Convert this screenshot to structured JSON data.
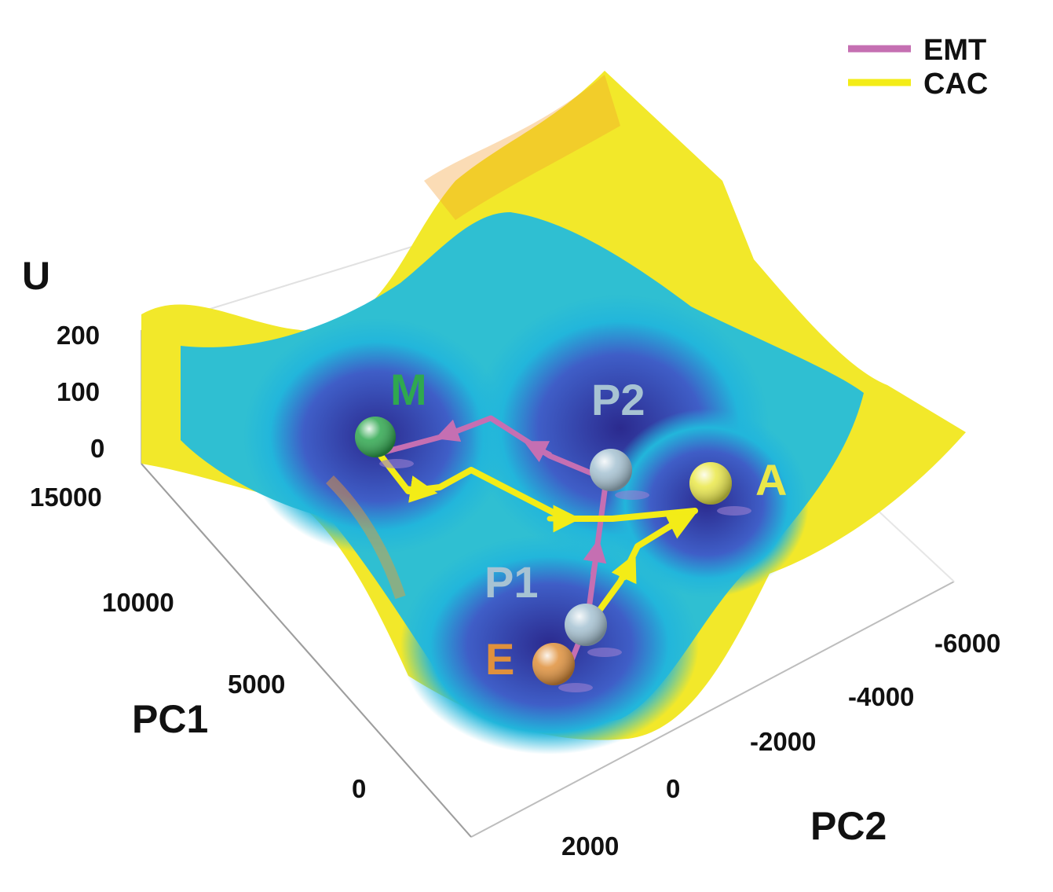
{
  "chart_data": {
    "type": "surface",
    "title": "",
    "axes": {
      "z": {
        "label": "U",
        "ticks": [
          "200",
          "100",
          "0"
        ]
      },
      "x": {
        "label": "PC1",
        "ticks": [
          "15000",
          "10000",
          "5000",
          "0"
        ]
      },
      "y": {
        "label": "PC2",
        "ticks": [
          "2000",
          "0",
          "-2000",
          "-4000",
          "-6000"
        ]
      }
    },
    "states": [
      {
        "name": "M",
        "pc1": 13000,
        "pc2": -500,
        "color": "#2fa84f"
      },
      {
        "name": "P2",
        "pc1": 9000,
        "pc2": -4000,
        "color": "#a7c3d3"
      },
      {
        "name": "A",
        "pc1": 7000,
        "pc2": -6000,
        "color": "#eae84a"
      },
      {
        "name": "P1",
        "pc1": 2500,
        "pc2": -2000,
        "color": "#a7c3d3"
      },
      {
        "name": "E",
        "pc1": 0,
        "pc2": -1000,
        "color": "#e0913c"
      }
    ],
    "legend": {
      "position": "top-right",
      "entries": [
        {
          "name": "EMT",
          "color": "#c56fb2"
        },
        {
          "name": "CAC",
          "color": "#f3ec17"
        }
      ]
    },
    "paths": [
      {
        "name": "EMT",
        "sequence": [
          "E",
          "P1",
          "P2",
          "M"
        ]
      },
      {
        "name": "CAC",
        "sequence": [
          "E",
          "A",
          "M"
        ]
      }
    ],
    "colormap": [
      "#2b2a8e",
      "#3f5ec7",
      "#22b6db",
      "#4fd3a2",
      "#f2e82a",
      "#f39b2a"
    ]
  }
}
